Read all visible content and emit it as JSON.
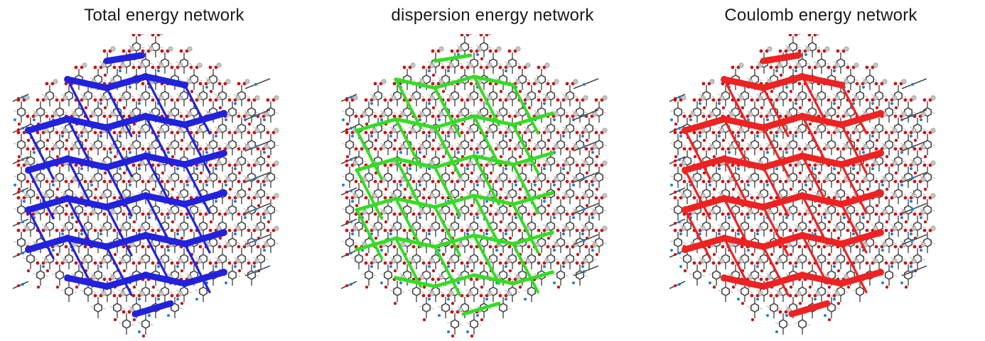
{
  "panels": [
    {
      "title": "Total energy network",
      "color": "#2222dd",
      "thickness": "thick"
    },
    {
      "title": "dispersion energy network",
      "color": "#33dd22",
      "thickness": "medium"
    },
    {
      "title": "Coulomb energy network",
      "color": "#ee2222",
      "thickness": "thick"
    }
  ],
  "colors": {
    "carbon": "#4a4a4a",
    "oxygen": "#cc1111",
    "nitrogen": "#1e7fd8",
    "metal": "#c9c4c4",
    "hydrogen": "#bdbdbd"
  },
  "icons": [
    "molecule-icon",
    "framework-node-icon"
  ]
}
